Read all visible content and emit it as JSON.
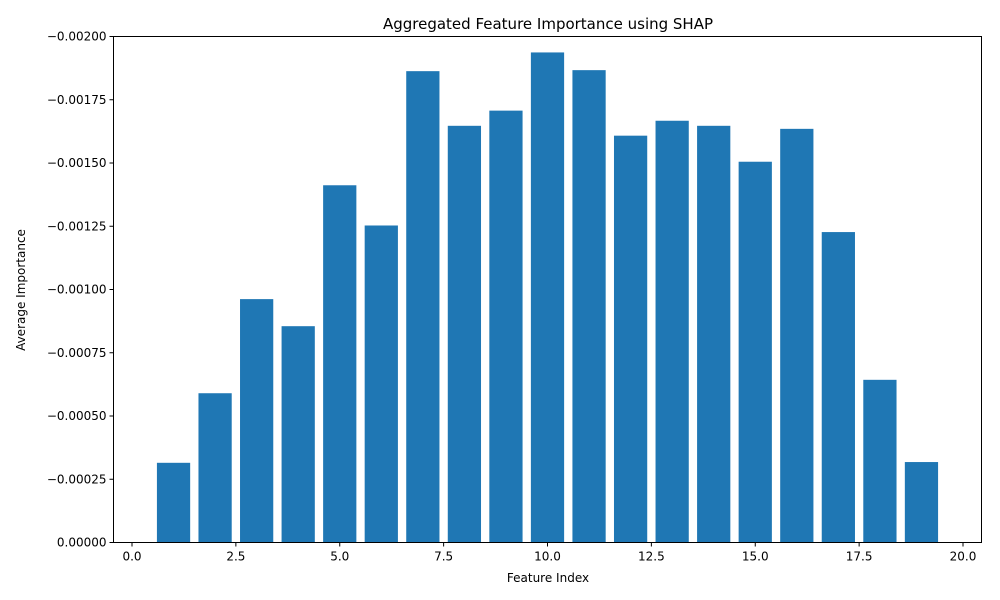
{
  "chart_data": {
    "type": "bar",
    "title": "Aggregated Feature Importance using SHAP",
    "xlabel": "Feature Index",
    "ylabel": "Average Importance",
    "x": [
      1,
      2,
      3,
      4,
      5,
      6,
      7,
      8,
      9,
      10,
      11,
      12,
      13,
      14,
      15,
      16,
      17,
      18,
      19
    ],
    "values": [
      -0.000315,
      -0.00059,
      -0.000962,
      -0.000855,
      -0.001412,
      -0.001253,
      -0.001863,
      -0.001647,
      -0.001707,
      -0.001937,
      -0.001867,
      -0.001608,
      -0.001667,
      -0.001647,
      -0.001505,
      -0.001635,
      -0.001227,
      -0.000643,
      -0.000318
    ],
    "xlim": [
      -0.445,
      20.445
    ],
    "ylim": [
      0,
      -0.002
    ],
    "y_inverted": true,
    "bar_width": 0.8,
    "bar_color": "#1f77b4",
    "xticks": [
      0.0,
      2.5,
      5.0,
      7.5,
      10.0,
      12.5,
      15.0,
      17.5,
      20.0
    ],
    "xtick_labels": [
      "0.0",
      "2.5",
      "5.0",
      "7.5",
      "10.0",
      "12.5",
      "15.0",
      "17.5",
      "20.0"
    ],
    "yticks": [
      0,
      -0.00025,
      -0.0005,
      -0.00075,
      -0.001,
      -0.00125,
      -0.0015,
      -0.00175,
      -0.002
    ],
    "ytick_labels": [
      "0.00000",
      "−0.00025",
      "−0.00050",
      "−0.00075",
      "−0.00100",
      "−0.00125",
      "−0.00150",
      "−0.00175",
      "−0.00200"
    ],
    "grid": false,
    "legend": "none"
  }
}
